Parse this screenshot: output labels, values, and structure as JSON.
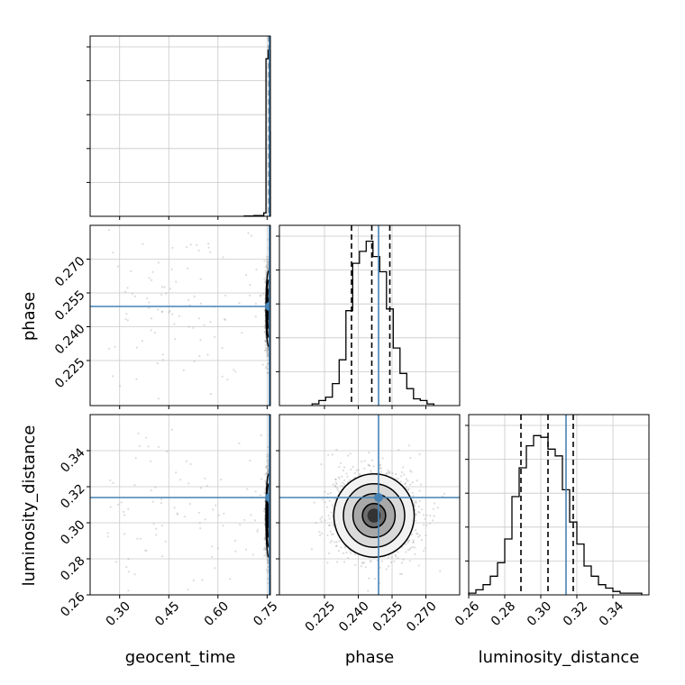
{
  "chart_data": {
    "type": "corner",
    "parameters": [
      "geocent_time",
      "phase",
      "luminosity_distance"
    ],
    "truths": {
      "geocent_time": 0.757,
      "phase": 0.249,
      "luminosity_distance": 0.314
    },
    "quantiles": {
      "geocent_time": [
        0.756,
        0.757,
        0.758
      ],
      "phase": [
        0.237,
        0.246,
        0.254
      ],
      "luminosity_distance": [
        0.289,
        0.304,
        0.318
      ]
    },
    "ranges": {
      "geocent_time": [
        0.21,
        0.76
      ],
      "phase": [
        0.205,
        0.285
      ],
      "luminosity_distance": [
        0.26,
        0.36
      ]
    },
    "tick_labels": {
      "geocent_time": [
        "0.30",
        "0.45",
        "0.60",
        "0.75"
      ],
      "phase": [
        "0.225",
        "0.240",
        "0.255",
        "0.270"
      ],
      "luminosity_distance": [
        "0.26",
        "0.28",
        "0.30",
        "0.32",
        "0.34"
      ]
    },
    "histograms": {
      "geocent_time": {
        "edges": [
          0.68,
          0.71,
          0.74,
          0.7466,
          0.7532,
          0.7598,
          0.76
        ],
        "heights": [
          0.002,
          0.004,
          0.02,
          0.93,
          0.98,
          0.5
        ]
      },
      "phase": {
        "bins": [
          0.221,
          0.224,
          0.227,
          0.23,
          0.233,
          0.236,
          0.239,
          0.242,
          0.245,
          0.248,
          0.251,
          0.254,
          0.257,
          0.26,
          0.263,
          0.266,
          0.269,
          0.272
        ],
        "heights": [
          0.01,
          0.03,
          0.05,
          0.13,
          0.27,
          0.56,
          0.84,
          0.91,
          0.97,
          0.88,
          0.79,
          0.57,
          0.34,
          0.19,
          0.1,
          0.04,
          0.03,
          0.01
        ]
      },
      "luminosity_distance": {
        "bins": [
          0.262,
          0.266,
          0.27,
          0.274,
          0.278,
          0.282,
          0.286,
          0.29,
          0.294,
          0.298,
          0.302,
          0.306,
          0.31,
          0.314,
          0.318,
          0.322,
          0.326,
          0.33,
          0.334,
          0.338,
          0.342,
          0.346,
          0.35,
          0.354
        ],
        "heights": [
          0.01,
          0.03,
          0.06,
          0.11,
          0.19,
          0.33,
          0.58,
          0.75,
          0.88,
          0.94,
          0.93,
          0.86,
          0.82,
          0.62,
          0.43,
          0.3,
          0.17,
          0.11,
          0.06,
          0.04,
          0.02,
          0.01,
          0.01,
          0.01
        ]
      }
    },
    "pairs": {
      "phase_vs_geocent_time": {
        "center": [
          0.755,
          0.248
        ],
        "spread": [
          0.004,
          0.008
        ]
      },
      "luminosity_distance_vs_geocent_time": {
        "center": [
          0.755,
          0.304
        ],
        "spread": [
          0.004,
          0.011
        ]
      },
      "luminosity_distance_vs_phase": {
        "center": [
          0.247,
          0.304
        ],
        "spread": [
          0.0085,
          0.011
        ]
      }
    },
    "colors": {
      "truth": "#4682b4",
      "histogram": "#000000",
      "points": "#9a9a9a"
    },
    "grid": true
  }
}
